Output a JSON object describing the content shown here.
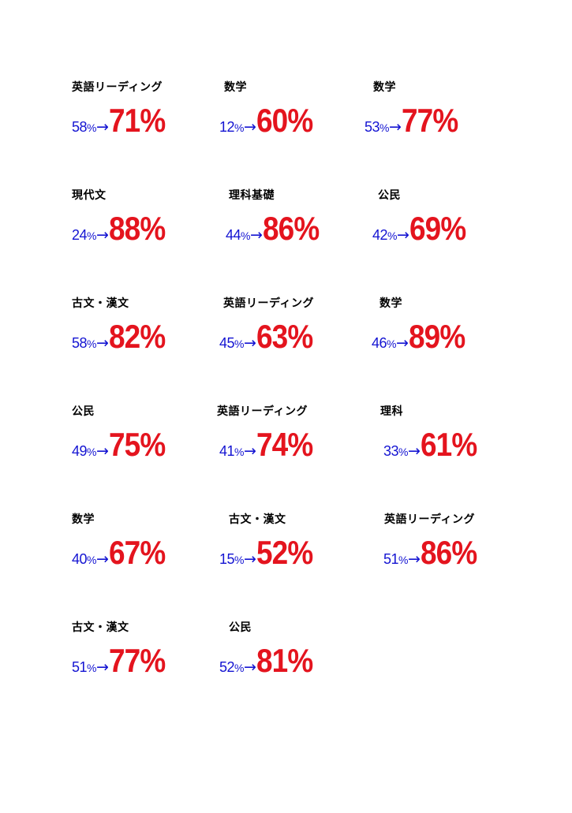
{
  "colors": {
    "before": "#1414d2",
    "after": "#e4141e",
    "subject": "#000000"
  },
  "arrow": "→",
  "results": [
    {
      "subject": "英語リーディング",
      "before": "58",
      "after": "71%"
    },
    {
      "subject": "数学",
      "before": "12",
      "after": "60%"
    },
    {
      "subject": "数学",
      "before": "53",
      "after": "77%"
    },
    {
      "subject": "現代文",
      "before": "24",
      "after": "88%"
    },
    {
      "subject": "理科基礎",
      "before": "44",
      "after": "86%"
    },
    {
      "subject": "公民",
      "before": "42",
      "after": "69%"
    },
    {
      "subject": "古文・漢文",
      "before": "58",
      "after": "82%"
    },
    {
      "subject": "英語リーディング",
      "before": "45",
      "after": "63%"
    },
    {
      "subject": "数学",
      "before": "46",
      "after": "89%"
    },
    {
      "subject": "公民",
      "before": "49",
      "after": "75%"
    },
    {
      "subject": "英語リーディング",
      "before": "41",
      "after": "74%"
    },
    {
      "subject": "理科",
      "before": "33",
      "after": "61%"
    },
    {
      "subject": "数学",
      "before": "40",
      "after": "67%"
    },
    {
      "subject": "古文・漢文",
      "before": "15",
      "after": "52%"
    },
    {
      "subject": "英語リーディング",
      "before": "51",
      "after": "86%"
    },
    {
      "subject": "古文・漢文",
      "before": "51",
      "after": "77%"
    },
    {
      "subject": "公民",
      "before": "52",
      "after": "81%"
    }
  ]
}
